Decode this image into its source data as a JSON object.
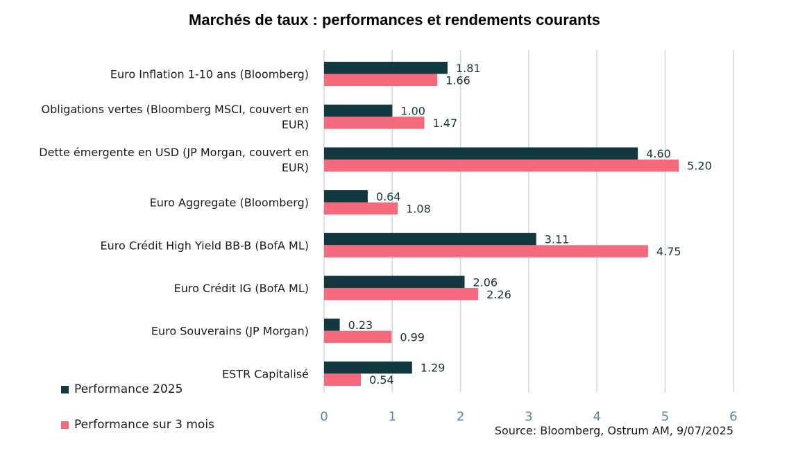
{
  "colors": {
    "series1": "#11393f",
    "series2": "#f5697d",
    "grid": "#c9d9e3",
    "tick": "#5a86a3"
  },
  "source": "Source: Bloomberg, Ostrum AM, 9/07/2025",
  "chart_data": {
    "type": "bar",
    "orientation": "horizontal",
    "title": "Marchés de taux : performances et rendements courants",
    "categories": [
      [
        "Euro Inflation 1-10 ans (Bloomberg)"
      ],
      [
        "Obligations vertes (Bloomberg MSCI, couvert en",
        "EUR)"
      ],
      [
        "Dette émergente en USD (JP Morgan, couvert en",
        "EUR)"
      ],
      [
        "Euro Aggregate (Bloomberg)"
      ],
      [
        "Euro Crédit High Yield BB-B (BofA ML)"
      ],
      [
        "Euro Crédit IG (BofA ML)"
      ],
      [
        "Euro Souverains (JP Morgan)"
      ],
      [
        "ESTR Capitalisé"
      ]
    ],
    "series": [
      {
        "name": "Performance 2025",
        "values": [
          1.81,
          1.0,
          4.6,
          0.64,
          3.11,
          2.06,
          0.23,
          1.29
        ],
        "labels": [
          "1.81",
          "1.00",
          "4.60",
          "0.64",
          "3.11",
          "2.06",
          "0.23",
          "1.29"
        ]
      },
      {
        "name": "Performance sur 3 mois",
        "values": [
          1.66,
          1.47,
          5.2,
          1.08,
          4.75,
          2.26,
          0.99,
          0.54
        ],
        "labels": [
          "1.66",
          "1.47",
          "5.20",
          "1.08",
          "4.75",
          "2.26",
          "0.99",
          "0.54"
        ]
      }
    ],
    "xlim": [
      0,
      6
    ],
    "xticks": [
      "0",
      "1",
      "2",
      "3",
      "4",
      "5",
      "6"
    ],
    "grid": true,
    "legend_position": "bottom-left"
  }
}
